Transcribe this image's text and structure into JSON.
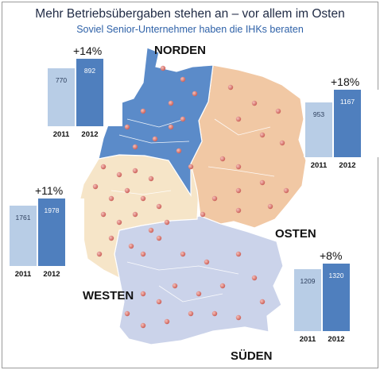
{
  "title": "Mehr Betriebsübergaben stehen an – vor allem im Osten",
  "subtitle": "Soviel Senior-Unternehmer haben die IHKs beraten",
  "regions": {
    "nord": {
      "label": "NORDEN",
      "color": "#5b8bc9"
    },
    "ost": {
      "label": "OSTEN",
      "color": "#f1c8a4"
    },
    "west": {
      "label": "WESTEN",
      "color": "#f6e5c8"
    },
    "sued": {
      "label": "SÜDEN",
      "color": "#cbd3ea"
    }
  },
  "colors": {
    "bar_2011": "#b8cde6",
    "bar_2012": "#4f7fbe",
    "dot": "#d9716b"
  },
  "chart_data": [
    {
      "type": "bar",
      "region": "NORDEN",
      "change": "+14%",
      "categories": [
        "2011",
        "2012"
      ],
      "values": [
        770,
        892
      ]
    },
    {
      "type": "bar",
      "region": "OSTEN",
      "change": "+18%",
      "categories": [
        "2011",
        "2012"
      ],
      "values": [
        953,
        1167
      ]
    },
    {
      "type": "bar",
      "region": "WESTEN",
      "change": "+11%",
      "categories": [
        "2011",
        "2012"
      ],
      "values": [
        1761,
        1978
      ]
    },
    {
      "type": "bar",
      "region": "SÜDEN",
      "change": "+8%",
      "categories": [
        "2011",
        "2012"
      ],
      "values": [
        1209,
        1320
      ]
    }
  ]
}
